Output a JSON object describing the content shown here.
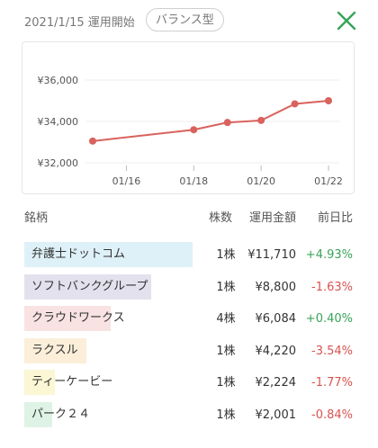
{
  "header": {
    "start_text": "2021/1/15 運用開始",
    "badge": "バランス型",
    "close_icon": "close-x-icon",
    "close_color": "#3aa35a"
  },
  "chart_data": {
    "type": "line",
    "x": [
      "01/15",
      "01/18",
      "01/19",
      "01/20",
      "01/21",
      "01/22"
    ],
    "values": [
      33050,
      33600,
      33950,
      34050,
      34850,
      35000
    ],
    "x_tick_labels": [
      "01/16",
      "01/18",
      "01/20",
      "01/22"
    ],
    "y_tick_labels": [
      "¥36,000",
      "¥34,000",
      "¥32,000"
    ],
    "y_ticks": [
      36000,
      34000,
      32000
    ],
    "ylim": [
      32000,
      36000
    ],
    "color": "#d9625e",
    "grid": "horizontal"
  },
  "table": {
    "headers": {
      "name": "銘柄",
      "shares": "株数",
      "amount": "運用金額",
      "change": "前日比"
    },
    "rows": [
      {
        "name": "弁護士ドットコム",
        "shares": "1株",
        "amount": "¥11,710",
        "change": "+4.93%",
        "dir": "pos",
        "bar_color": "#dff1f8",
        "bar_fraction": 0.49
      },
      {
        "name": "ソフトバンクグループ",
        "shares": "1株",
        "amount": "¥8,800",
        "change": "-1.63%",
        "dir": "neg",
        "bar_color": "#e4e1ef",
        "bar_fraction": 0.37
      },
      {
        "name": "クラウドワークス",
        "shares": "4株",
        "amount": "¥6,084",
        "change": "+0.40%",
        "dir": "pos",
        "bar_color": "#f8e2e2",
        "bar_fraction": 0.25
      },
      {
        "name": "ラクスル",
        "shares": "1株",
        "amount": "¥4,220",
        "change": "-3.54%",
        "dir": "neg",
        "bar_color": "#fbefd9",
        "bar_fraction": 0.18
      },
      {
        "name": "ティーケービー",
        "shares": "1株",
        "amount": "¥2,224",
        "change": "-1.77%",
        "dir": "neg",
        "bar_color": "#fbf6d4",
        "bar_fraction": 0.09
      },
      {
        "name": "パーク２４",
        "shares": "1株",
        "amount": "¥2,001",
        "change": "-0.84%",
        "dir": "neg",
        "bar_color": "#def3e6",
        "bar_fraction": 0.08
      }
    ]
  }
}
